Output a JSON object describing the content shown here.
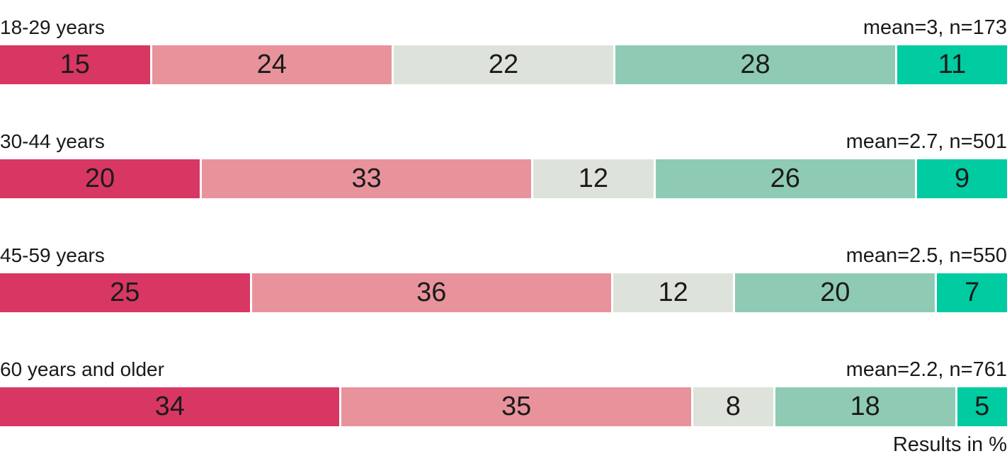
{
  "chart_data": {
    "type": "bar",
    "orientation": "horizontal",
    "stacked": true,
    "value_unit": "percent",
    "footer_note": "Results in %",
    "segment_colors": [
      "#d93763",
      "#e8939c",
      "#dde3da",
      "#8fcbb4",
      "#00cba1"
    ],
    "text_color": "#1a1a1a",
    "rows": [
      {
        "label": "18-29 years",
        "mean_label": "mean=3, n=173",
        "values": [
          15,
          24,
          22,
          28,
          11
        ]
      },
      {
        "label": "30-44 years",
        "mean_label": "mean=2.7, n=501",
        "values": [
          20,
          33,
          12,
          26,
          9
        ]
      },
      {
        "label": "45-59 years",
        "mean_label": "mean=2.5, n=550",
        "values": [
          25,
          36,
          12,
          20,
          7
        ]
      },
      {
        "label": "60 years and older",
        "mean_label": "mean=2.2, n=761",
        "values": [
          34,
          35,
          8,
          18,
          5
        ]
      }
    ]
  }
}
